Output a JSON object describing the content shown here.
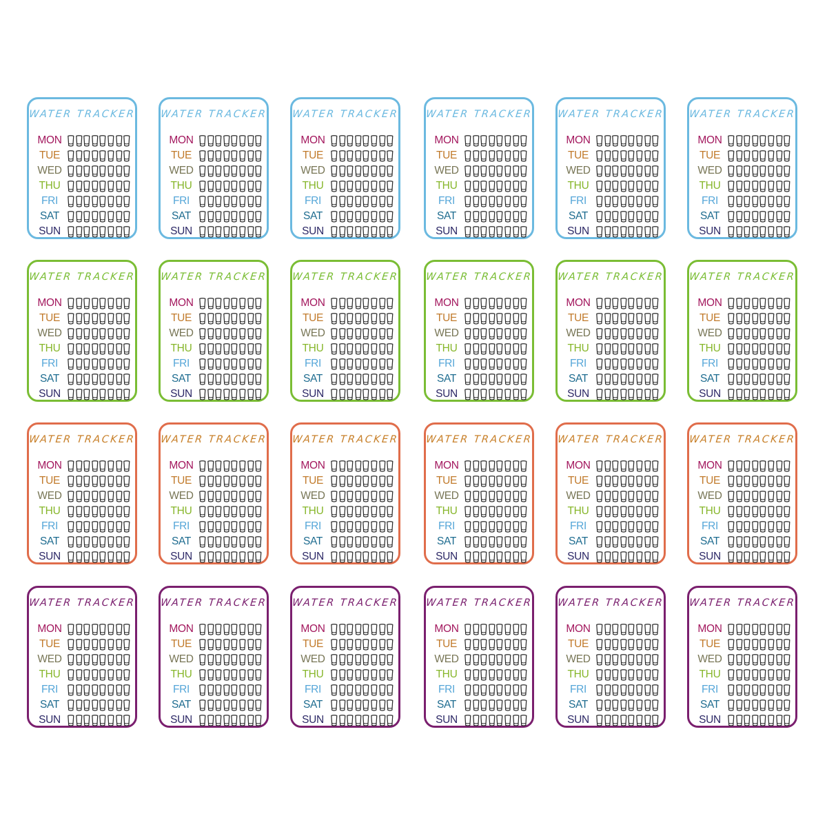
{
  "sheet": {
    "title": "WATER TRACKER",
    "cups_per_day": 8,
    "columns": 6,
    "days": [
      {
        "label": "MON",
        "color": "#a3185e"
      },
      {
        "label": "TUE",
        "color": "#c17a2b"
      },
      {
        "label": "WED",
        "color": "#777555"
      },
      {
        "label": "THU",
        "color": "#86b62a"
      },
      {
        "label": "FRI",
        "color": "#55a6d8"
      },
      {
        "label": "SAT",
        "color": "#1d6b8f"
      },
      {
        "label": "SUN",
        "color": "#2c2866"
      }
    ],
    "rows": [
      {
        "theme": "blue",
        "border_color": "#6bb9e0",
        "title_color": "#6bb9e0"
      },
      {
        "theme": "green",
        "border_color": "#7abd34",
        "title_color": "#7abd34"
      },
      {
        "theme": "orange",
        "border_color": "#e06d4b",
        "title_color": "#c8802a"
      },
      {
        "theme": "purple",
        "border_color": "#7a1f6e",
        "title_color": "#7a1f6e"
      }
    ],
    "cup_icon": "cup-icon",
    "cup_color": "#2a2a2a"
  }
}
